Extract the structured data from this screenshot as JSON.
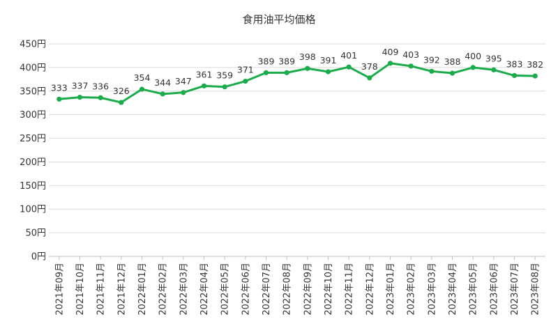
{
  "chart_data": {
    "type": "line",
    "title": "食用油平均価格",
    "xlabel": "",
    "ylabel": "",
    "y_unit": "円",
    "ylim": [
      0,
      450
    ],
    "yticks": [
      0,
      50,
      100,
      150,
      200,
      250,
      300,
      350,
      400,
      450
    ],
    "grid": true,
    "legend": "none",
    "line_color": "#1aab4a",
    "categories": [
      "2021年09月",
      "2021年10月",
      "2021年11月",
      "2021年12月",
      "2022年01月",
      "2022年02月",
      "2022年03月",
      "2022年04月",
      "2022年05月",
      "2022年06月",
      "2022年07月",
      "2022年08月",
      "2022年09月",
      "2022年10月",
      "2022年11月",
      "2022年12月",
      "2023年01月",
      "2023年02月",
      "2023年03月",
      "2023年04月",
      "2023年05月",
      "2023年06月",
      "2023年07月",
      "2023年08月"
    ],
    "series": [
      {
        "values": [
          333,
          337,
          336,
          326,
          354,
          344,
          347,
          361,
          359,
          371,
          389,
          389,
          398,
          391,
          401,
          378,
          409,
          403,
          392,
          388,
          400,
          395,
          383,
          382
        ]
      }
    ]
  }
}
